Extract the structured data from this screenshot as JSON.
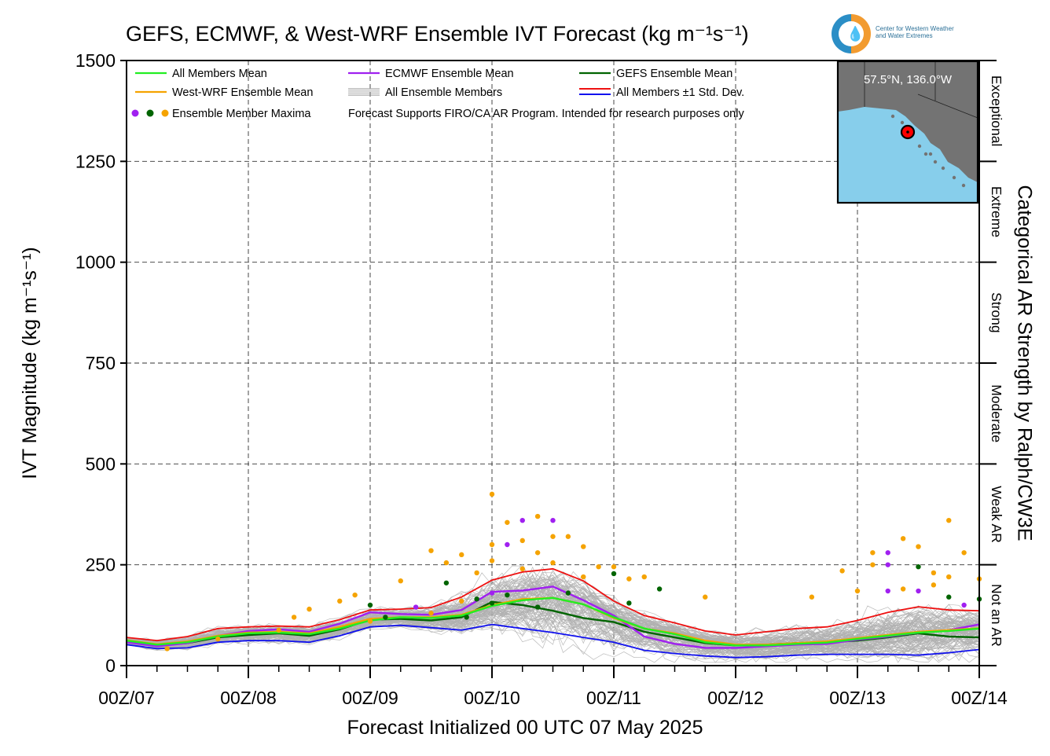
{
  "title": "GEFS, ECMWF, & West-WRF Ensemble IVT Forecast",
  "title_units": "(kg m⁻¹s⁻¹)",
  "logo": {
    "line1": "Center for Western Weather",
    "line2": "and Water Extremes"
  },
  "inset": {
    "location_label": "57.5°N, 136.0°W"
  },
  "legend": {
    "all_members_mean": "All Members Mean",
    "ecmwf_mean": "ECMWF Ensemble Mean",
    "gefs_mean": "GEFS Ensemble Mean",
    "westwrf_mean": "West-WRF Ensemble Mean",
    "all_members": "All Ensemble Members",
    "std_dev": "All Members ±1 Std. Dev.",
    "maxima": "Ensemble Member Maxima",
    "note": "Forecast Supports FIRO/CA AR Program. Intended for research purposes only"
  },
  "colors": {
    "all_members_mean": "#22ee22",
    "westwrf_mean": "#f5a300",
    "ecmwf_mean": "#a020f0",
    "gefs_mean": "#006400",
    "std_upper": "#ee1111",
    "std_lower": "#1111ee",
    "members": "#b0b0b0",
    "map_ocean": "#87ceeb",
    "map_land": "#737373",
    "marker": "#ff0000"
  },
  "chart_data": {
    "type": "line",
    "title": "GEFS, ECMWF, & West-WRF Ensemble IVT Forecast (kg m⁻¹s⁻¹)",
    "xlabel": "Forecast Initialized 00 UTC 07 May 2025",
    "ylabel": "IVT Magnitude (kg m⁻¹s⁻¹)",
    "ylabel_right": "Categorical AR Strength by Ralph/CW3E",
    "x_unit": "forecast hour",
    "x_range": [
      0,
      168
    ],
    "ylim": [
      0,
      1500
    ],
    "x_ticks": [
      {
        "x": 0,
        "label": "00Z/07"
      },
      {
        "x": 24,
        "label": "00Z/08"
      },
      {
        "x": 48,
        "label": "00Z/09"
      },
      {
        "x": 72,
        "label": "00Z/10"
      },
      {
        "x": 96,
        "label": "00Z/11"
      },
      {
        "x": 120,
        "label": "00Z/12"
      },
      {
        "x": 144,
        "label": "00Z/13"
      },
      {
        "x": 168,
        "label": "00Z/14"
      }
    ],
    "y_ticks": [
      0,
      250,
      500,
      750,
      1000,
      1250,
      1500
    ],
    "grid": true,
    "legend_position": "top-left",
    "categories_right": [
      {
        "label": "Not an AR",
        "range": [
          0,
          250
        ]
      },
      {
        "label": "Weak AR",
        "range": [
          250,
          500
        ]
      },
      {
        "label": "Moderate",
        "range": [
          500,
          750
        ]
      },
      {
        "label": "Strong",
        "range": [
          750,
          1000
        ]
      },
      {
        "label": "Extreme",
        "range": [
          1000,
          1250
        ]
      },
      {
        "label": "Exceptional",
        "range": [
          1250,
          1500
        ]
      }
    ],
    "x": [
      0,
      6,
      12,
      18,
      24,
      30,
      36,
      42,
      48,
      54,
      60,
      66,
      72,
      78,
      84,
      90,
      96,
      102,
      108,
      114,
      120,
      126,
      132,
      138,
      144,
      150,
      156,
      162,
      168
    ],
    "series": [
      {
        "name": "All Members Mean",
        "key": "all_members_mean",
        "values": [
          62,
          52,
          58,
          72,
          80,
          82,
          78,
          92,
          112,
          120,
          118,
          124,
          148,
          162,
          168,
          152,
          120,
          92,
          78,
          58,
          50,
          50,
          54,
          57,
          66,
          74,
          82,
          86,
          92
        ]
      },
      {
        "name": "ECMWF Ensemble Mean",
        "key": "ecmwf_mean",
        "values": [
          58,
          48,
          56,
          74,
          86,
          90,
          84,
          104,
          132,
          128,
          126,
          138,
          183,
          186,
          196,
          162,
          124,
          72,
          54,
          44,
          44,
          48,
          52,
          54,
          64,
          72,
          82,
          88,
          102
        ]
      },
      {
        "name": "GEFS Ensemble Mean",
        "key": "gefs_mean",
        "values": [
          62,
          50,
          56,
          70,
          76,
          80,
          74,
          90,
          114,
          116,
          112,
          120,
          158,
          150,
          136,
          118,
          108,
          84,
          70,
          56,
          50,
          52,
          56,
          58,
          62,
          70,
          80,
          72,
          70
        ]
      },
      {
        "name": "West-WRF Ensemble Mean",
        "key": "westwrf_mean",
        "values": [
          63,
          53,
          60,
          74,
          82,
          84,
          80,
          96,
          116,
          120,
          120,
          126,
          150,
          165,
          168,
          152,
          118,
          92,
          80,
          62,
          52,
          52,
          56,
          60,
          68,
          76,
          84,
          88,
          93
        ]
      },
      {
        "name": "All Members ±1 Std. Dev.",
        "key": "std_upper",
        "values": [
          70,
          62,
          72,
          92,
          96,
          98,
          96,
          114,
          138,
          140,
          144,
          170,
          212,
          232,
          240,
          210,
          160,
          124,
          106,
          86,
          76,
          84,
          92,
          96,
          112,
          132,
          146,
          138,
          136
        ]
      },
      {
        "name": "All Members ±1 Std. Dev. (lower)",
        "key": "std_lower",
        "values": [
          52,
          42,
          44,
          58,
          62,
          62,
          58,
          74,
          96,
          100,
          94,
          88,
          102,
          92,
          82,
          70,
          58,
          38,
          30,
          24,
          20,
          22,
          26,
          28,
          28,
          28,
          26,
          32,
          40
        ]
      }
    ],
    "maxima": [
      {
        "x": 8,
        "y": 42,
        "color": "westwrf_mean"
      },
      {
        "x": 18,
        "y": 66,
        "color": "westwrf_mean"
      },
      {
        "x": 30,
        "y": 88,
        "color": "westwrf_mean"
      },
      {
        "x": 33,
        "y": 120,
        "color": "westwrf_mean"
      },
      {
        "x": 36,
        "y": 140,
        "color": "westwrf_mean"
      },
      {
        "x": 42,
        "y": 160,
        "color": "westwrf_mean"
      },
      {
        "x": 45,
        "y": 175,
        "color": "westwrf_mean"
      },
      {
        "x": 48,
        "y": 150,
        "color": "gefs_mean"
      },
      {
        "x": 48,
        "y": 110,
        "color": "westwrf_mean"
      },
      {
        "x": 51,
        "y": 120,
        "color": "gefs_mean"
      },
      {
        "x": 54,
        "y": 210,
        "color": "westwrf_mean"
      },
      {
        "x": 57,
        "y": 145,
        "color": "ecmwf_mean"
      },
      {
        "x": 60,
        "y": 285,
        "color": "westwrf_mean"
      },
      {
        "x": 60,
        "y": 130,
        "color": "westwrf_mean"
      },
      {
        "x": 63,
        "y": 255,
        "color": "westwrf_mean"
      },
      {
        "x": 63,
        "y": 205,
        "color": "gefs_mean"
      },
      {
        "x": 66,
        "y": 275,
        "color": "westwrf_mean"
      },
      {
        "x": 66,
        "y": 160,
        "color": "westwrf_mean"
      },
      {
        "x": 67,
        "y": 120,
        "color": "gefs_mean"
      },
      {
        "x": 69,
        "y": 165,
        "color": "gefs_mean"
      },
      {
        "x": 69,
        "y": 230,
        "color": "westwrf_mean"
      },
      {
        "x": 72,
        "y": 425,
        "color": "westwrf_mean"
      },
      {
        "x": 72,
        "y": 300,
        "color": "westwrf_mean"
      },
      {
        "x": 72,
        "y": 260,
        "color": "westwrf_mean"
      },
      {
        "x": 72,
        "y": 180,
        "color": "ecmwf_mean"
      },
      {
        "x": 72,
        "y": 155,
        "color": "gefs_mean"
      },
      {
        "x": 75,
        "y": 355,
        "color": "westwrf_mean"
      },
      {
        "x": 75,
        "y": 300,
        "color": "ecmwf_mean"
      },
      {
        "x": 75,
        "y": 175,
        "color": "gefs_mean"
      },
      {
        "x": 78,
        "y": 360,
        "color": "ecmwf_mean"
      },
      {
        "x": 78,
        "y": 310,
        "color": "westwrf_mean"
      },
      {
        "x": 78,
        "y": 240,
        "color": "westwrf_mean"
      },
      {
        "x": 81,
        "y": 370,
        "color": "westwrf_mean"
      },
      {
        "x": 81,
        "y": 280,
        "color": "westwrf_mean"
      },
      {
        "x": 81,
        "y": 145,
        "color": "gefs_mean"
      },
      {
        "x": 84,
        "y": 360,
        "color": "ecmwf_mean"
      },
      {
        "x": 84,
        "y": 320,
        "color": "westwrf_mean"
      },
      {
        "x": 84,
        "y": 255,
        "color": "westwrf_mean"
      },
      {
        "x": 87,
        "y": 320,
        "color": "westwrf_mean"
      },
      {
        "x": 87,
        "y": 180,
        "color": "gefs_mean"
      },
      {
        "x": 90,
        "y": 295,
        "color": "westwrf_mean"
      },
      {
        "x": 90,
        "y": 220,
        "color": "westwrf_mean"
      },
      {
        "x": 93,
        "y": 245,
        "color": "westwrf_mean"
      },
      {
        "x": 96,
        "y": 245,
        "color": "westwrf_mean"
      },
      {
        "x": 96,
        "y": 228,
        "color": "gefs_mean"
      },
      {
        "x": 99,
        "y": 215,
        "color": "westwrf_mean"
      },
      {
        "x": 99,
        "y": 155,
        "color": "gefs_mean"
      },
      {
        "x": 102,
        "y": 220,
        "color": "westwrf_mean"
      },
      {
        "x": 105,
        "y": 190,
        "color": "gefs_mean"
      },
      {
        "x": 114,
        "y": 170,
        "color": "westwrf_mean"
      },
      {
        "x": 135,
        "y": 170,
        "color": "westwrf_mean"
      },
      {
        "x": 141,
        "y": 235,
        "color": "westwrf_mean"
      },
      {
        "x": 144,
        "y": 185,
        "color": "westwrf_mean"
      },
      {
        "x": 147,
        "y": 280,
        "color": "westwrf_mean"
      },
      {
        "x": 147,
        "y": 250,
        "color": "westwrf_mean"
      },
      {
        "x": 150,
        "y": 280,
        "color": "ecmwf_mean"
      },
      {
        "x": 150,
        "y": 250,
        "color": "ecmwf_mean"
      },
      {
        "x": 150,
        "y": 185,
        "color": "ecmwf_mean"
      },
      {
        "x": 153,
        "y": 315,
        "color": "westwrf_mean"
      },
      {
        "x": 153,
        "y": 190,
        "color": "westwrf_mean"
      },
      {
        "x": 156,
        "y": 295,
        "color": "westwrf_mean"
      },
      {
        "x": 156,
        "y": 245,
        "color": "gefs_mean"
      },
      {
        "x": 156,
        "y": 185,
        "color": "ecmwf_mean"
      },
      {
        "x": 159,
        "y": 230,
        "color": "westwrf_mean"
      },
      {
        "x": 159,
        "y": 200,
        "color": "westwrf_mean"
      },
      {
        "x": 162,
        "y": 360,
        "color": "westwrf_mean"
      },
      {
        "x": 162,
        "y": 220,
        "color": "westwrf_mean"
      },
      {
        "x": 162,
        "y": 170,
        "color": "gefs_mean"
      },
      {
        "x": 165,
        "y": 280,
        "color": "westwrf_mean"
      },
      {
        "x": 165,
        "y": 150,
        "color": "ecmwf_mean"
      },
      {
        "x": 168,
        "y": 215,
        "color": "westwrf_mean"
      },
      {
        "x": 168,
        "y": 165,
        "color": "gefs_mean"
      }
    ]
  }
}
